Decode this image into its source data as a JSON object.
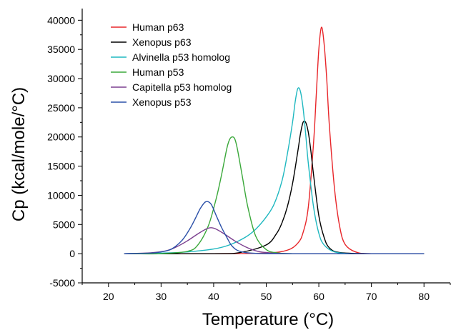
{
  "chart_data": {
    "type": "line",
    "title": "",
    "xlabel": "Temperature (°C)",
    "ylabel": "Cp (kcal/mole/°C)",
    "xlim": [
      15,
      85
    ],
    "ylim": [
      -5000,
      42000
    ],
    "x_ticks": [
      20,
      30,
      40,
      50,
      60,
      70,
      80
    ],
    "y_ticks": [
      -5000,
      0,
      5000,
      10000,
      15000,
      20000,
      25000,
      30000,
      35000,
      40000
    ],
    "grid": false,
    "legend_position": "top-left",
    "series": [
      {
        "name": "Human p63",
        "color": "#e8262a",
        "x": [
          23,
          40,
          50,
          54,
          56,
          57,
          58,
          59,
          59.5,
          60,
          60.5,
          61,
          61.5,
          62,
          63,
          64,
          65,
          67,
          70,
          80
        ],
        "y": [
          0,
          0,
          100,
          600,
          1800,
          3600,
          8000,
          19000,
          27000,
          35000,
          38800,
          36000,
          30000,
          22000,
          11000,
          4500,
          1600,
          300,
          0,
          0
        ]
      },
      {
        "name": "Xenopus p63",
        "color": "#000000",
        "x": [
          23,
          40,
          45,
          50,
          52,
          53,
          54,
          55,
          56,
          56.5,
          57,
          57.5,
          58,
          58.5,
          59,
          60,
          61,
          62,
          64,
          70,
          80
        ],
        "y": [
          0,
          0,
          200,
          1500,
          3500,
          5300,
          8000,
          12000,
          17500,
          20500,
          22500,
          22500,
          20800,
          17500,
          13500,
          6500,
          2800,
          1000,
          200,
          0,
          0
        ]
      },
      {
        "name": "Alvinella p53 homolog",
        "color": "#1fb8c0",
        "x": [
          23,
          30,
          35,
          40,
          43,
          46,
          48,
          50,
          51.5,
          53,
          54,
          55,
          55.5,
          56,
          56.5,
          57,
          57.5,
          58,
          59,
          60,
          61,
          63,
          66,
          70,
          80
        ],
        "y": [
          0,
          100,
          300,
          800,
          1500,
          2800,
          4200,
          6300,
          8500,
          12500,
          17000,
          22500,
          26000,
          28300,
          27800,
          25000,
          20500,
          15500,
          8000,
          3500,
          1500,
          300,
          0,
          0,
          0
        ]
      },
      {
        "name": "Human p53",
        "color": "#3aa83a",
        "x": [
          23,
          30,
          35,
          37,
          39,
          40.5,
          41.5,
          42.5,
          43,
          43.5,
          44,
          44.5,
          45.5,
          46.5,
          48,
          50,
          52,
          55,
          60,
          80
        ],
        "y": [
          0,
          0,
          400,
          1500,
          4800,
          9500,
          13500,
          18000,
          19500,
          20000,
          19700,
          18000,
          13000,
          8000,
          3000,
          700,
          150,
          0,
          0,
          0
        ]
      },
      {
        "name": "Capitella p53 homolog",
        "color": "#7b3f8f",
        "x": [
          23,
          28,
          31,
          33,
          35,
          37,
          38.5,
          39.5,
          40.5,
          42,
          44,
          46,
          48,
          50,
          55,
          80
        ],
        "y": [
          0,
          150,
          500,
          1200,
          2200,
          3400,
          4200,
          4450,
          4200,
          3400,
          2200,
          1200,
          500,
          200,
          0,
          0
        ]
      },
      {
        "name": "Xenopus p53",
        "color": "#2b50a8",
        "x": [
          23,
          28,
          30,
          32,
          34,
          35.5,
          36.5,
          37.5,
          38.5,
          39.5,
          40.5,
          41.5,
          42.5,
          43.5,
          45,
          48,
          55,
          80
        ],
        "y": [
          0,
          100,
          300,
          800,
          2300,
          4300,
          6000,
          7800,
          8900,
          8500,
          6500,
          4500,
          2800,
          1300,
          400,
          50,
          0,
          0
        ]
      }
    ]
  }
}
